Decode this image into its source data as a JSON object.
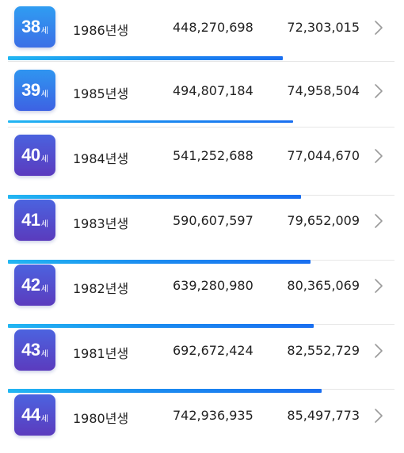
{
  "rows": [
    {
      "age": "38",
      "unit": "세",
      "year": "1986년생",
      "amount1": "448,270,698",
      "amount2": "72,303,015",
      "bar_fraction": 0.6939,
      "color_top": "#2f9df2",
      "color_bottom": "#3c6fe6"
    },
    {
      "age": "39",
      "unit": "세",
      "year": "1985년생",
      "amount1": "494,807,184",
      "amount2": "74,958,504",
      "bar_fraction": 0.7193,
      "color_top": "#2f95f0",
      "color_bottom": "#3d62e3"
    },
    {
      "age": "40",
      "unit": "세",
      "year": "1984년생",
      "amount1": "541,252,688",
      "amount2": "77,044,670",
      "bar_fraction": 0.7393,
      "color_top": "#4a62de",
      "color_bottom": "#5b3bbf"
    },
    {
      "age": "41",
      "unit": "세",
      "year": "1983년생",
      "amount1": "590,607,597",
      "amount2": "79,652,009",
      "bar_fraction": 0.7643,
      "color_top": "#4b63df",
      "color_bottom": "#5a3bbd"
    },
    {
      "age": "42",
      "unit": "세",
      "year": "1982년생",
      "amount1": "639,280,980",
      "amount2": "80,365,069",
      "bar_fraction": 0.7712,
      "color_top": "#4c63df",
      "color_bottom": "#5b3bbe"
    },
    {
      "age": "43",
      "unit": "세",
      "year": "1981년생",
      "amount1": "692,672,424",
      "amount2": "82,552,729",
      "bar_fraction": 0.7921,
      "color_top": "#4c63df",
      "color_bottom": "#5b3bbe"
    },
    {
      "age": "44",
      "unit": "세",
      "year": "1980년생",
      "amount1": "742,936,935",
      "amount2": "85,497,773",
      "bar_fraction": null,
      "color_top": "#4c63df",
      "color_bottom": "#5b3bbe"
    }
  ]
}
